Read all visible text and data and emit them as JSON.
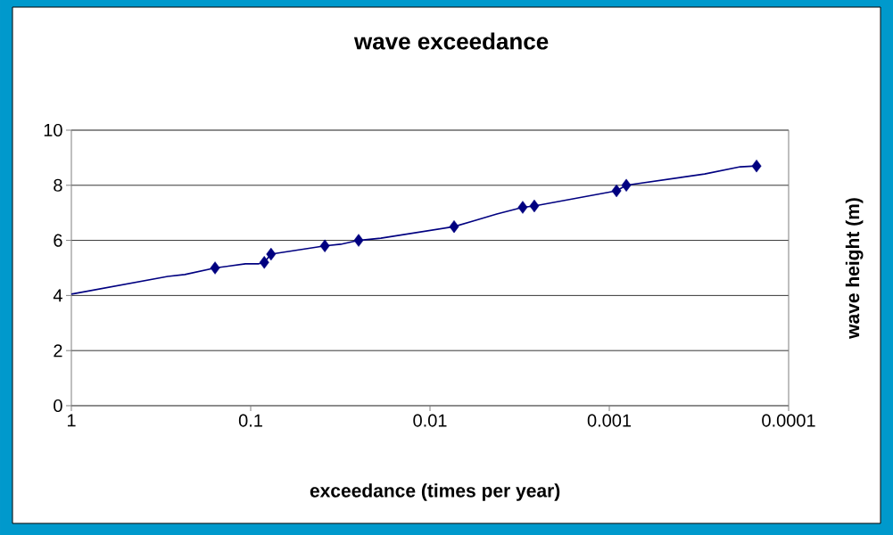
{
  "chart_data": {
    "type": "line",
    "title": "wave exceedance",
    "xlabel": "exceedance (times per year)",
    "ylabel": "wave height (m)",
    "log": "x",
    "grid": "y",
    "xlim": [
      1,
      0.0001
    ],
    "xticks": [
      1,
      0.1,
      0.01,
      0.001,
      0.0001
    ],
    "ylim": [
      0,
      10
    ],
    "yticks": [
      0,
      2,
      4,
      6,
      8,
      10
    ],
    "series": [
      {
        "color": "#000080",
        "marker": "none",
        "line_style": "solid",
        "x": [
          1,
          0.29,
          0.233,
          0.158,
          0.107,
          0.09,
          0.084,
          0.077,
          0.0386,
          0.0315,
          0.025,
          0.0188,
          0.00734,
          0.00577,
          0.00424,
          0.00304,
          0.00262,
          0.000912,
          0.000804,
          0.000294,
          0.000186,
          0.000151
        ],
        "values": [
          4.05,
          4.69,
          4.76,
          5.0,
          5.15,
          5.15,
          5.2,
          5.5,
          5.8,
          5.86,
          6.0,
          6.08,
          6.5,
          6.7,
          6.96,
          7.2,
          7.25,
          7.8,
          8.0,
          8.41,
          8.67,
          8.7
        ]
      },
      {
        "type": "scatter",
        "color": "#000080",
        "marker": "diamond",
        "x": [
          0.158,
          0.084,
          0.077,
          0.0386,
          0.025,
          0.00734,
          0.00304,
          0.00262,
          0.000912,
          0.000804,
          0.000151
        ],
        "values": [
          5.0,
          5.2,
          5.5,
          5.8,
          6.0,
          6.5,
          7.2,
          7.25,
          7.8,
          8.0,
          8.7
        ]
      }
    ]
  }
}
